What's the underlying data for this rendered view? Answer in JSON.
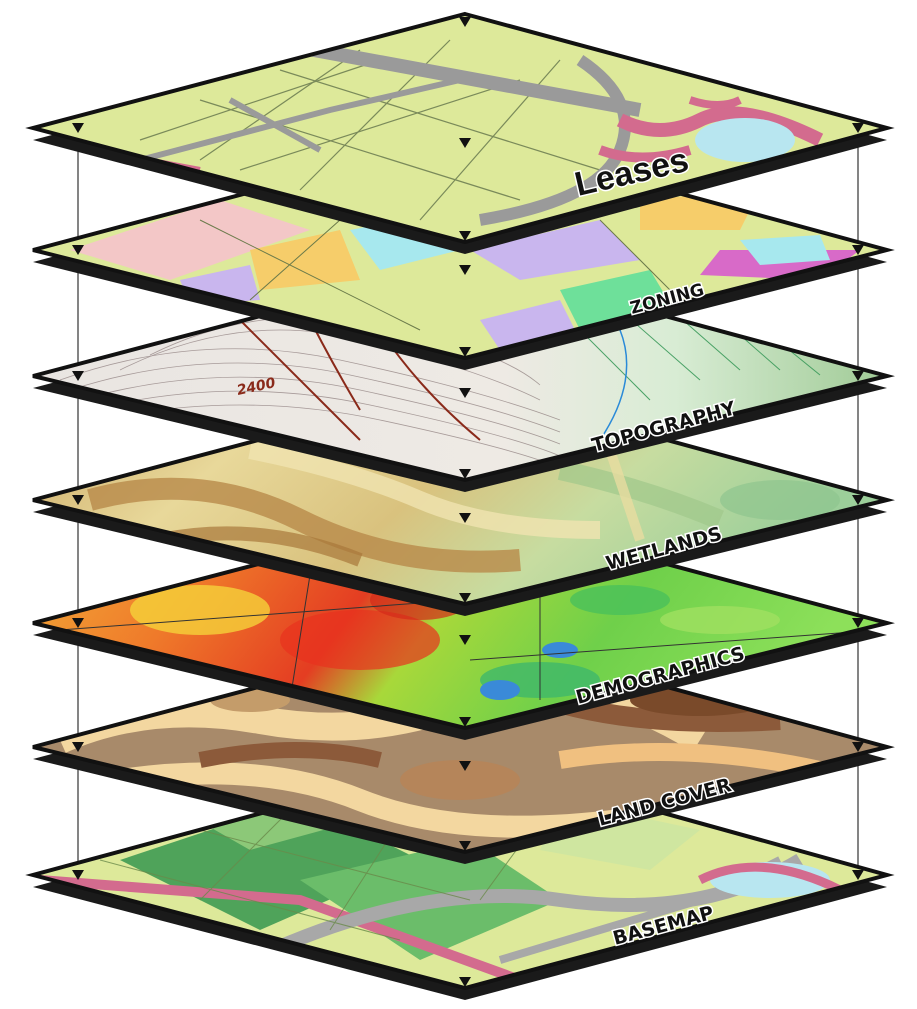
{
  "layers": [
    {
      "id": "leases",
      "label": "Leases"
    },
    {
      "id": "zoning",
      "label": "ZONING"
    },
    {
      "id": "topography",
      "label": "TOPOGRAPHY",
      "contour_label": "2400"
    },
    {
      "id": "wetlands",
      "label": "WETLANDS"
    },
    {
      "id": "demographics",
      "label": "DEMOGRAPHICS"
    },
    {
      "id": "landcover",
      "label": "LAND COVER"
    },
    {
      "id": "basemap",
      "label": "BASEMAP"
    }
  ],
  "colors": {
    "outline": "#111111",
    "connector": "#333333",
    "parcel": "#dde99a",
    "road": "#9a9a9a",
    "water": "#b8e6f0",
    "pink": "#d36b8e"
  }
}
